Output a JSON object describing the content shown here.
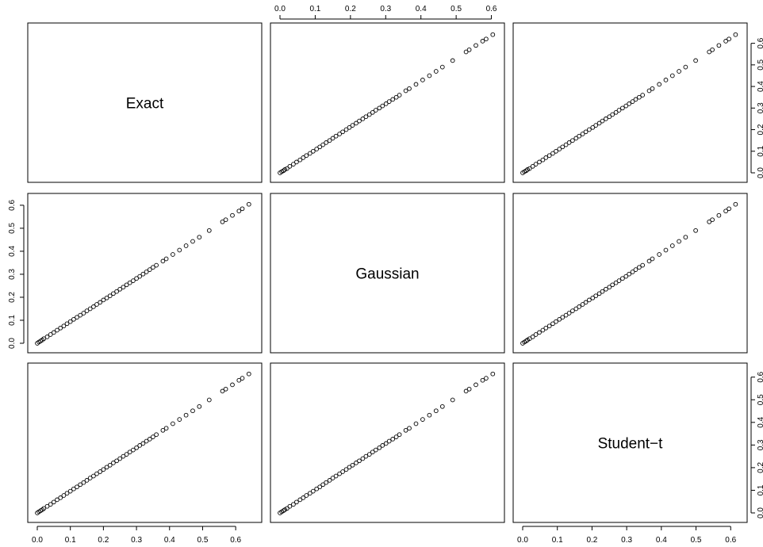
{
  "chart_data": {
    "type": "scatter",
    "kind": "pairs-matrix",
    "variables": [
      "Exact",
      "Gaussian",
      "Student−t"
    ],
    "axes": {
      "Exact": {
        "range": [
          0,
          0.65
        ],
        "ticks": [
          0.0,
          0.1,
          0.2,
          0.3,
          0.4,
          0.5,
          0.6
        ],
        "tick_labels": [
          "0.0",
          "0.1",
          "0.2",
          "0.3",
          "0.4",
          "0.5",
          "0.6"
        ]
      },
      "Gaussian": {
        "range": [
          0,
          0.61
        ],
        "ticks": [
          0.0,
          0.1,
          0.2,
          0.3,
          0.4,
          0.5,
          0.6
        ],
        "tick_labels": [
          "0.0",
          "0.1",
          "0.2",
          "0.3",
          "0.4",
          "0.5",
          "0.6"
        ]
      },
      "Student−t": {
        "range": [
          0,
          0.62
        ],
        "ticks": [
          0.0,
          0.1,
          0.2,
          0.3,
          0.4,
          0.5,
          0.6
        ],
        "tick_labels": [
          "0.0",
          "0.1",
          "0.2",
          "0.3",
          "0.4",
          "0.5",
          "0.6"
        ]
      }
    },
    "axis_placement": {
      "bottom": [
        "Exact",
        null,
        "Student−t"
      ],
      "top": [
        null,
        "Gaussian",
        null
      ],
      "left": [
        null,
        "Gaussian",
        null
      ],
      "right": [
        "Exact",
        null,
        "Student−t"
      ]
    },
    "observations": {
      "Exact": [
        0.0,
        0.005,
        0.01,
        0.015,
        0.02,
        0.03,
        0.04,
        0.05,
        0.06,
        0.07,
        0.08,
        0.09,
        0.1,
        0.11,
        0.12,
        0.13,
        0.14,
        0.15,
        0.16,
        0.17,
        0.18,
        0.19,
        0.2,
        0.21,
        0.22,
        0.23,
        0.24,
        0.25,
        0.26,
        0.27,
        0.28,
        0.29,
        0.3,
        0.31,
        0.32,
        0.33,
        0.34,
        0.35,
        0.36,
        0.38,
        0.39,
        0.41,
        0.43,
        0.45,
        0.47,
        0.49,
        0.52,
        0.56,
        0.57,
        0.59,
        0.61,
        0.62,
        0.64
      ],
      "Gaussian": [
        0.0,
        0.005,
        0.01,
        0.014,
        0.02,
        0.028,
        0.038,
        0.047,
        0.057,
        0.066,
        0.075,
        0.085,
        0.094,
        0.104,
        0.113,
        0.122,
        0.131,
        0.141,
        0.15,
        0.159,
        0.169,
        0.178,
        0.188,
        0.197,
        0.206,
        0.216,
        0.225,
        0.235,
        0.244,
        0.254,
        0.263,
        0.272,
        0.282,
        0.291,
        0.301,
        0.31,
        0.32,
        0.33,
        0.339,
        0.357,
        0.367,
        0.386,
        0.405,
        0.424,
        0.443,
        0.461,
        0.49,
        0.528,
        0.537,
        0.556,
        0.575,
        0.585,
        0.604
      ],
      "Student−t": [
        0.0,
        0.005,
        0.01,
        0.014,
        0.02,
        0.029,
        0.038,
        0.048,
        0.058,
        0.067,
        0.077,
        0.087,
        0.096,
        0.106,
        0.115,
        0.125,
        0.134,
        0.144,
        0.154,
        0.163,
        0.173,
        0.182,
        0.192,
        0.202,
        0.211,
        0.221,
        0.23,
        0.24,
        0.25,
        0.259,
        0.269,
        0.278,
        0.288,
        0.298,
        0.307,
        0.317,
        0.326,
        0.336,
        0.346,
        0.365,
        0.374,
        0.394,
        0.413,
        0.432,
        0.451,
        0.47,
        0.499,
        0.538,
        0.547,
        0.566,
        0.586,
        0.595,
        0.614
      ]
    },
    "grid": false,
    "legend": "none"
  }
}
